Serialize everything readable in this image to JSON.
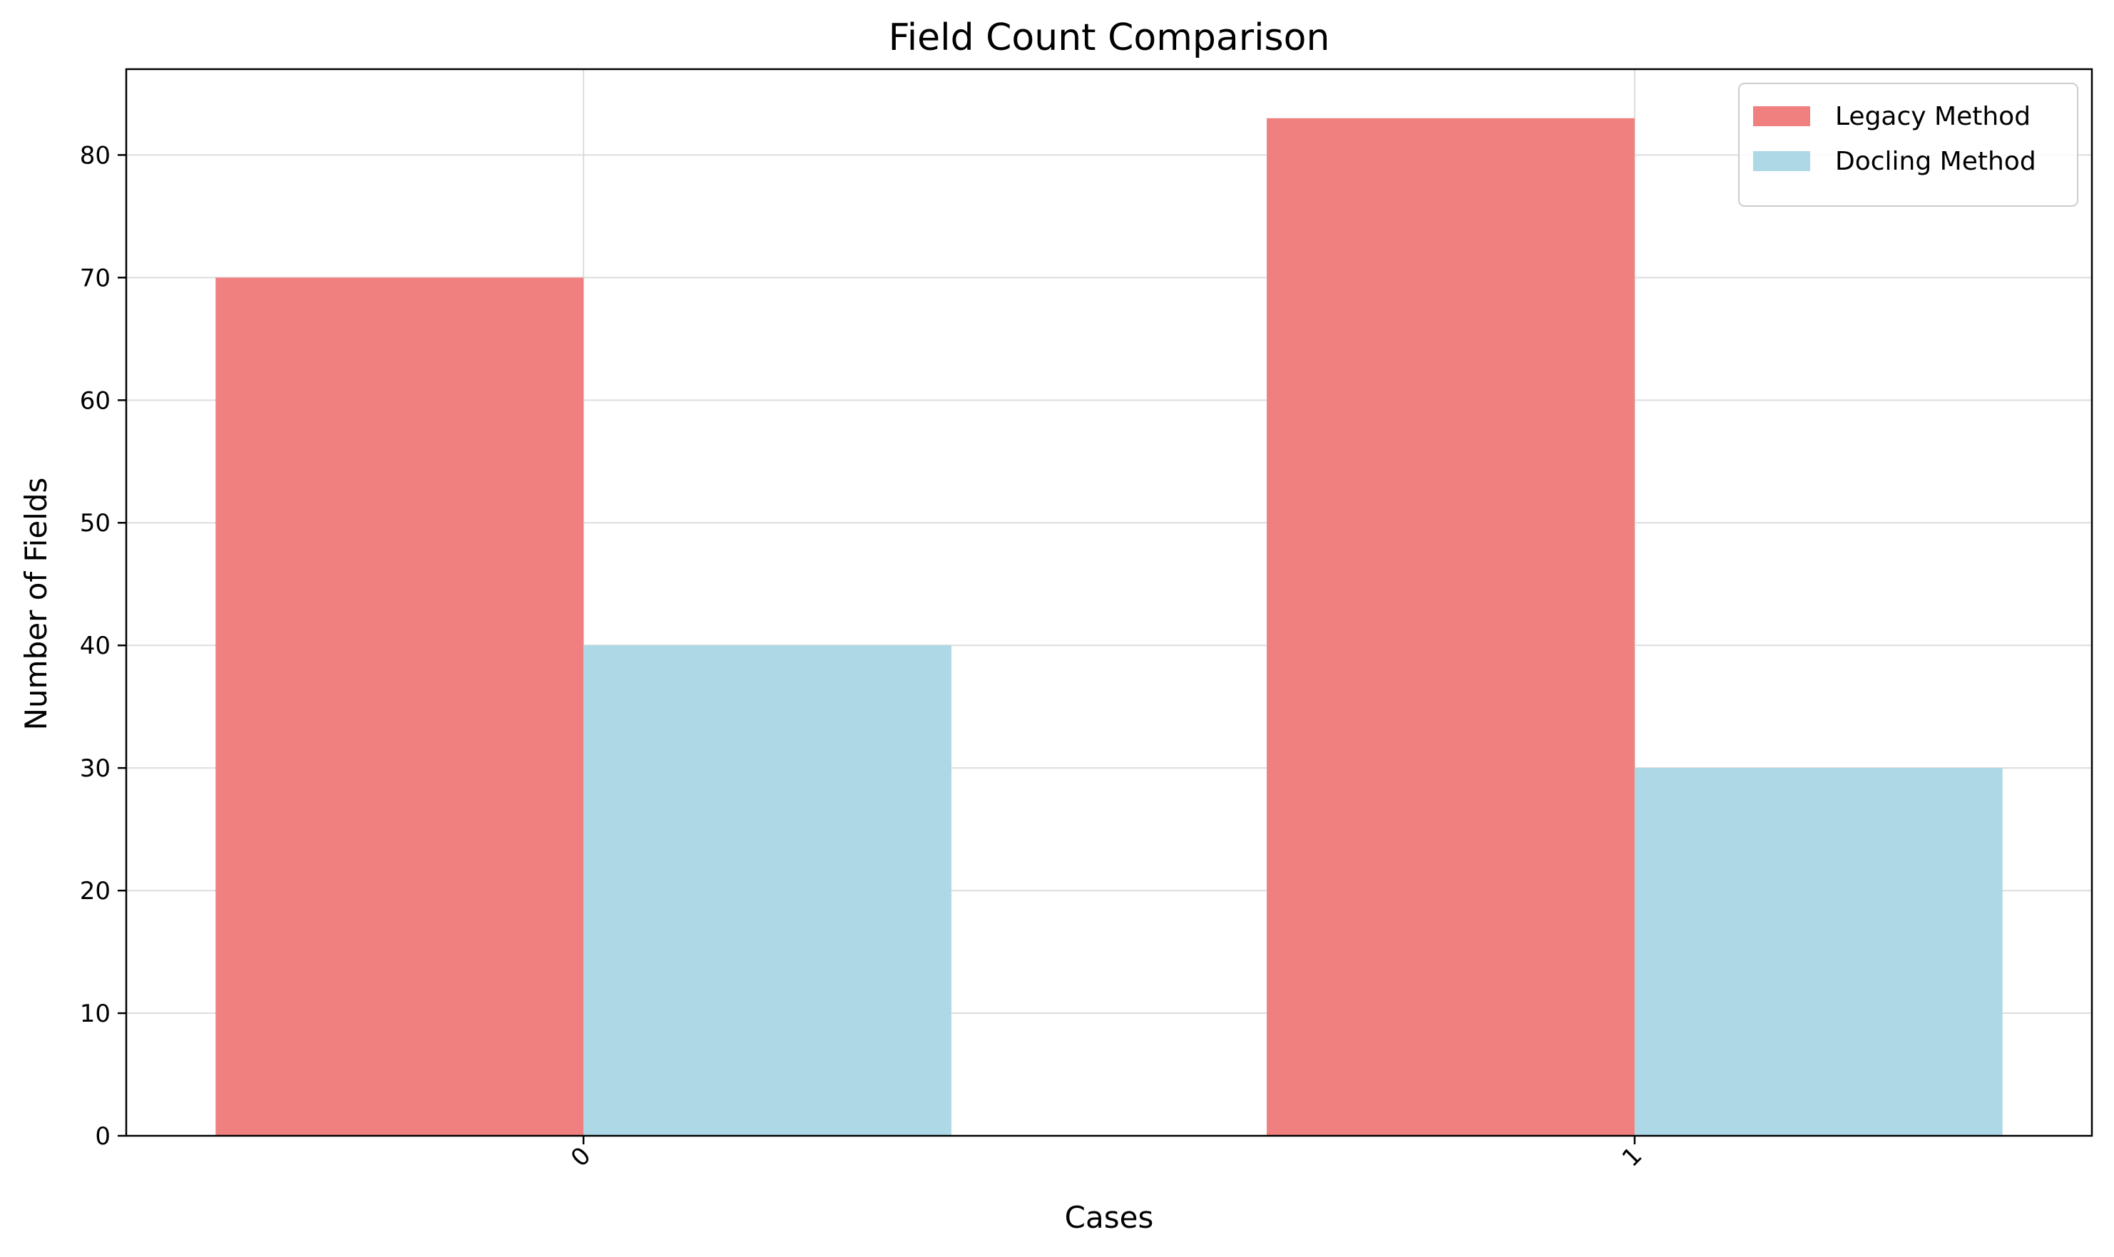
{
  "chart_data": {
    "type": "bar",
    "title": "Field Count Comparison",
    "xlabel": "Cases",
    "ylabel": "Number of Fields",
    "categories": [
      "0",
      "1"
    ],
    "series": [
      {
        "name": "Legacy Method",
        "values": [
          70,
          83
        ],
        "color": "#F08080"
      },
      {
        "name": "Docling Method",
        "values": [
          40,
          30
        ],
        "color": "#ADD8E6"
      }
    ],
    "ylim": [
      0,
      87
    ],
    "yticks": [
      0,
      10,
      20,
      30,
      40,
      50,
      60,
      70,
      80
    ],
    "grid": true,
    "legend_position": "top-right",
    "xtick_rotation": "45"
  }
}
